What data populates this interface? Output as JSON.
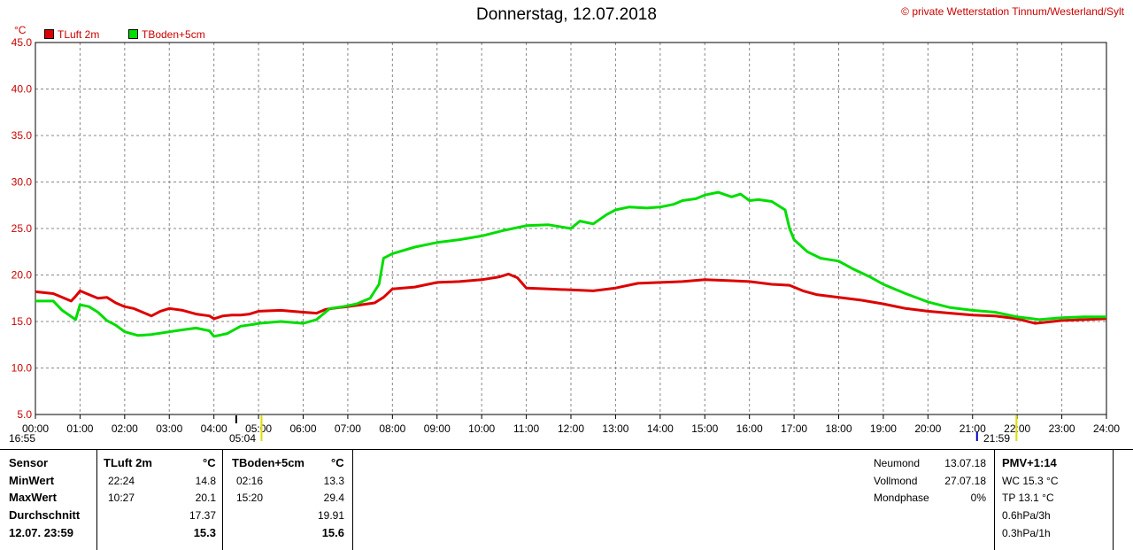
{
  "title": "Donnerstag, 12.07.2018",
  "copyright": "© private Wetterstation Tinnum/Westerland/Sylt",
  "unit": "°C",
  "colors": {
    "luft": "#dd0000",
    "boden": "#00dd00",
    "grid": "#888888",
    "axis": "#000000"
  },
  "chart_data": {
    "type": "line",
    "xlabel": "",
    "ylabel": "°C",
    "xlim": [
      0,
      24
    ],
    "ylim": [
      5,
      45
    ],
    "y_ticks": [
      "5.0",
      "10.0",
      "15.0",
      "20.0",
      "25.0",
      "30.0",
      "35.0",
      "40.0",
      "45.0"
    ],
    "x_ticks": [
      "00:00",
      "01:00",
      "02:00",
      "03:00",
      "04:00",
      "05:00",
      "06:00",
      "07:00",
      "08:00",
      "09:00",
      "10:00",
      "11:00",
      "12:00",
      "13:00",
      "14:00",
      "15:00",
      "16:00",
      "17:00",
      "18:00",
      "19:00",
      "20:00",
      "21:00",
      "22:00",
      "23:00",
      "24:00"
    ],
    "legend": "top-left",
    "grid": true,
    "series": [
      {
        "name": "TLuft 2m",
        "color": "#dd0000",
        "x": [
          0,
          0.4,
          0.8,
          0.9,
          1.0,
          1.2,
          1.4,
          1.6,
          1.8,
          2.0,
          2.2,
          2.4,
          2.6,
          2.8,
          3.0,
          3.3,
          3.6,
          3.9,
          4.0,
          4.2,
          4.4,
          4.6,
          4.8,
          5.0,
          5.5,
          6.0,
          6.3,
          6.5,
          6.8,
          7.0,
          7.3,
          7.6,
          7.8,
          8.0,
          8.5,
          9.0,
          9.5,
          10.0,
          10.4,
          10.6,
          10.8,
          11.0,
          11.5,
          12.0,
          12.5,
          13.0,
          13.5,
          14.0,
          14.5,
          15.0,
          15.5,
          16.0,
          16.5,
          16.9,
          17.2,
          17.5,
          18.0,
          18.5,
          19.0,
          19.5,
          20.0,
          20.5,
          21.0,
          21.5,
          22.0,
          22.4,
          23.0,
          23.5,
          24.0
        ],
        "y": [
          18.2,
          18.0,
          17.2,
          17.7,
          18.3,
          17.9,
          17.5,
          17.6,
          17.0,
          16.6,
          16.4,
          16.0,
          15.6,
          16.1,
          16.4,
          16.2,
          15.8,
          15.6,
          15.3,
          15.6,
          15.7,
          15.7,
          15.8,
          16.1,
          16.2,
          16.0,
          15.9,
          16.3,
          16.5,
          16.6,
          16.8,
          17.0,
          17.6,
          18.5,
          18.7,
          19.2,
          19.3,
          19.5,
          19.8,
          20.1,
          19.7,
          18.6,
          18.5,
          18.4,
          18.3,
          18.6,
          19.1,
          19.2,
          19.3,
          19.5,
          19.4,
          19.3,
          19.0,
          18.9,
          18.3,
          17.9,
          17.6,
          17.3,
          16.9,
          16.4,
          16.1,
          15.9,
          15.7,
          15.6,
          15.3,
          14.8,
          15.1,
          15.2,
          15.3
        ]
      },
      {
        "name": "TBoden+5cm",
        "color": "#00dd00",
        "x": [
          0,
          0.4,
          0.6,
          0.9,
          1.0,
          1.2,
          1.4,
          1.6,
          1.8,
          2.0,
          2.3,
          2.6,
          3.0,
          3.3,
          3.6,
          3.9,
          4.0,
          4.3,
          4.6,
          4.9,
          5.0,
          5.5,
          6.0,
          6.3,
          6.6,
          6.9,
          7.2,
          7.5,
          7.7,
          7.8,
          8.0,
          8.5,
          9.0,
          9.5,
          10.0,
          10.5,
          11.0,
          11.5,
          12.0,
          12.2,
          12.5,
          12.8,
          13.0,
          13.3,
          13.7,
          14.0,
          14.3,
          14.5,
          14.8,
          15.0,
          15.3,
          15.6,
          15.8,
          16.0,
          16.2,
          16.5,
          16.8,
          16.9,
          17.0,
          17.3,
          17.6,
          18.0,
          18.3,
          18.7,
          19.0,
          19.5,
          20.0,
          20.5,
          21.0,
          21.5,
          22.0,
          22.5,
          23.0,
          23.5,
          24.0
        ],
        "y": [
          17.2,
          17.2,
          16.2,
          15.2,
          16.8,
          16.6,
          16.0,
          15.1,
          14.6,
          13.9,
          13.5,
          13.6,
          13.9,
          14.1,
          14.3,
          14.0,
          13.4,
          13.7,
          14.5,
          14.7,
          14.8,
          15.0,
          14.8,
          15.2,
          16.4,
          16.6,
          16.9,
          17.5,
          19.0,
          21.8,
          22.3,
          23.0,
          23.5,
          23.8,
          24.2,
          24.8,
          25.3,
          25.4,
          25.0,
          25.8,
          25.5,
          26.5,
          27.0,
          27.3,
          27.2,
          27.3,
          27.6,
          28.0,
          28.2,
          28.6,
          28.9,
          28.4,
          28.7,
          28.0,
          28.1,
          27.9,
          27.0,
          25.0,
          23.8,
          22.5,
          21.8,
          21.5,
          20.7,
          19.8,
          19.0,
          18.0,
          17.1,
          16.5,
          16.2,
          16.0,
          15.5,
          15.2,
          15.4,
          15.5,
          15.5
        ]
      }
    ]
  },
  "markers": {
    "sunrise": "05:04",
    "sunset": "21:59",
    "left_time": "16:55"
  },
  "table": {
    "sensor_label": "Sensor",
    "rows_labels": [
      "MinWert",
      "MaxWert",
      "Durchschnitt",
      "12.07. 23:59"
    ],
    "luft": {
      "header": "TLuft 2m",
      "unit": "°C",
      "min_time": "22:24",
      "min": "14.8",
      "max_time": "10:27",
      "max": "20.1",
      "avg": "17.37",
      "last": "15.3"
    },
    "boden": {
      "header": "TBoden+5cm",
      "unit": "°C",
      "min_time": "02:16",
      "min": "13.3",
      "max_time": "15:20",
      "max": "29.4",
      "avg": "19.91",
      "last": "15.6"
    },
    "moon": [
      {
        "label": "Neumond",
        "value": "13.07.18"
      },
      {
        "label": "Vollmond",
        "value": "27.07.18"
      },
      {
        "label": "Mondphase",
        "value": "0%"
      }
    ],
    "pmv": {
      "header": "PMV+1:14",
      "lines": [
        "WC 15.3 °C",
        "TP 13.1 °C",
        "0.6hPa/3h",
        "0.3hPa/1h"
      ]
    }
  }
}
